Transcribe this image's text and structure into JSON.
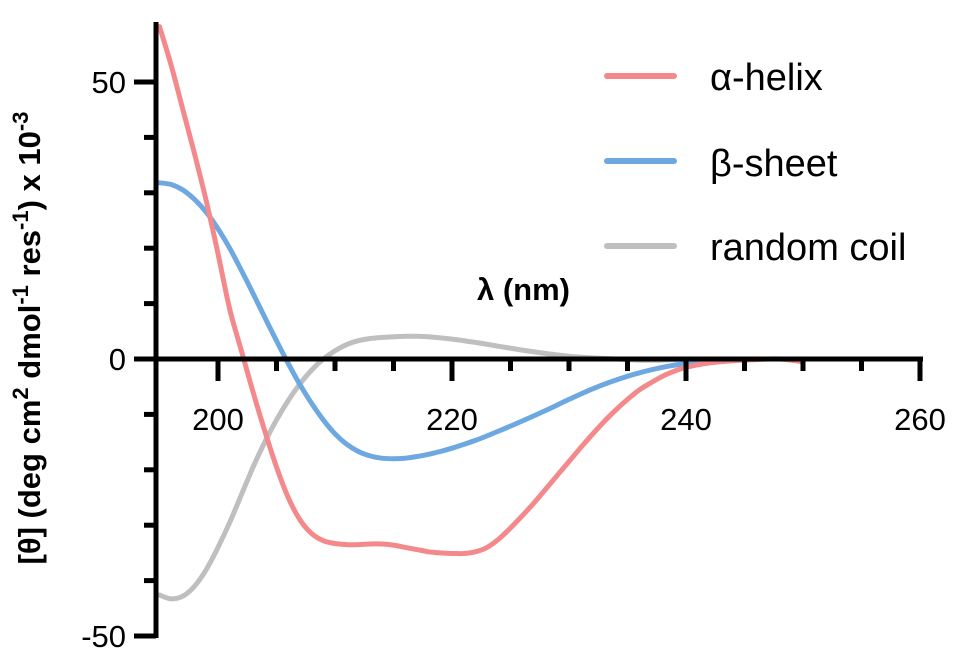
{
  "chart_data": {
    "type": "line",
    "title": "",
    "xlabel": "λ (nm)",
    "ylabel": "[θ] (deg cm² dmol⁻¹ res⁻¹) x 10⁻³",
    "ylabel_parts": {
      "main": "[θ] (deg cm",
      "sup1": "2",
      "mid": " dmol",
      "sup2": "-1",
      "mid2": " res",
      "sup3": "-1",
      "end": ") x 10",
      "sup4": "-3"
    },
    "xlim": [
      195,
      260
    ],
    "ylim": [
      -50,
      60
    ],
    "x_ticks": [
      200,
      220,
      240,
      260
    ],
    "x_tick_labels": [
      "200",
      "220",
      "240",
      "260"
    ],
    "x_minor_step": 5,
    "y_ticks": [
      -50,
      0,
      50
    ],
    "y_tick_labels": [
      "-50",
      "0",
      "50"
    ],
    "y_minor_step": 10,
    "grid": false,
    "legend_position": "upper right",
    "series": [
      {
        "name": "α-helix",
        "color": "#F4898C",
        "x": [
          195,
          196,
          197,
          198,
          199,
          200,
          201,
          202,
          203,
          204,
          205,
          206,
          207,
          208,
          209,
          210,
          211,
          212,
          213,
          214,
          215,
          216,
          217,
          218,
          219,
          220,
          221,
          222,
          223,
          224,
          225,
          226,
          227,
          228,
          229,
          230,
          231,
          232,
          233,
          234,
          235,
          236,
          237,
          238,
          239,
          240,
          242,
          244,
          246,
          248,
          250
        ],
        "y": [
          60,
          53,
          45,
          37,
          28.5,
          19,
          9,
          1.5,
          -6,
          -13,
          -19.5,
          -25,
          -29,
          -31.5,
          -32.8,
          -33.3,
          -33.5,
          -33.5,
          -33.4,
          -33.4,
          -33.6,
          -34,
          -34.4,
          -34.8,
          -35,
          -35.1,
          -35.1,
          -34.8,
          -34,
          -32.5,
          -30.5,
          -28.3,
          -26,
          -23.5,
          -21,
          -18.5,
          -16,
          -13.6,
          -11.3,
          -9.2,
          -7.3,
          -5.6,
          -4.3,
          -3.1,
          -2.2,
          -1.5,
          -0.7,
          -0.3,
          -0.1,
          0,
          -0.5
        ]
      },
      {
        "name": "β-sheet",
        "color": "#6DA9E0",
        "x": [
          195,
          196,
          197,
          198,
          199,
          200,
          201,
          202,
          203,
          204,
          205,
          206,
          207,
          208,
          209,
          210,
          211,
          212,
          213,
          214,
          215,
          216,
          217,
          218,
          219,
          220,
          222,
          224,
          226,
          228,
          230,
          232,
          234,
          236,
          238,
          240,
          242,
          244,
          246,
          248,
          250
        ],
        "y": [
          31.8,
          31.5,
          30.5,
          28.8,
          26.5,
          23.5,
          20,
          16,
          11.8,
          7.5,
          3.3,
          -0.8,
          -4.6,
          -8,
          -11,
          -13.5,
          -15.4,
          -16.7,
          -17.5,
          -17.9,
          -18,
          -17.9,
          -17.6,
          -17.2,
          -16.7,
          -16.1,
          -14.7,
          -13,
          -11.2,
          -9.3,
          -7.3,
          -5.4,
          -3.8,
          -2.5,
          -1.5,
          -0.8,
          -0.3,
          -0.1,
          0,
          0,
          0
        ]
      },
      {
        "name": "random coil",
        "color": "#BFBFBF",
        "x": [
          195,
          196,
          197,
          198,
          199,
          200,
          201,
          202,
          203,
          204,
          205,
          206,
          207,
          208,
          209,
          210,
          211,
          212,
          213,
          214,
          215,
          216,
          217,
          218,
          220,
          222,
          224,
          226,
          228,
          230,
          232,
          234,
          236,
          238,
          240
        ],
        "y": [
          -42.6,
          -43.3,
          -42.8,
          -41,
          -38,
          -34,
          -29.5,
          -24.5,
          -19.5,
          -15,
          -11,
          -7.5,
          -4.5,
          -2,
          0,
          1.5,
          2.6,
          3.3,
          3.7,
          3.9,
          4,
          4.1,
          4.1,
          4,
          3.6,
          3,
          2.3,
          1.6,
          1,
          0.5,
          0.2,
          0,
          -0.2,
          -0.2,
          0
        ]
      }
    ]
  }
}
